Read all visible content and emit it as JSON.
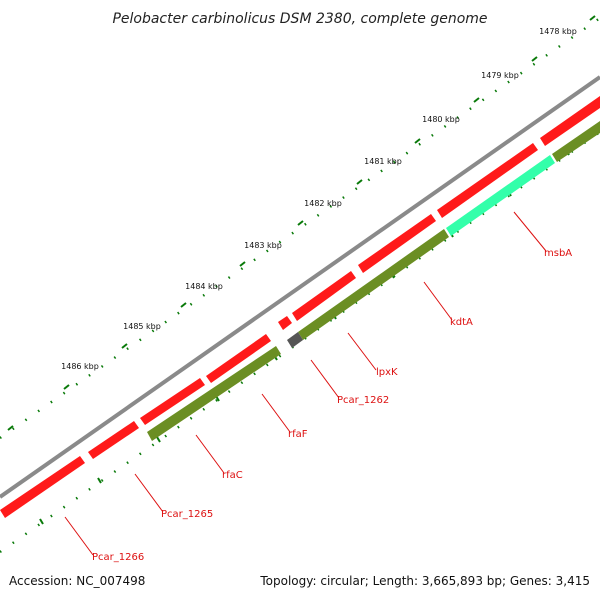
{
  "title": "Pelobacter carbinolicus DSM 2380, complete genome",
  "footer": {
    "accession": "Accession: NC_007498",
    "summary": "Topology: circular; Length: 3,665,893 bp; Genes: 3,415"
  },
  "colors": {
    "backbone": "#8a8a8a",
    "cds": "#ff1a1a",
    "feature_olive": "#6b8e23",
    "feature_aqua": "#33ffaa",
    "feature_gray": "#555555",
    "tick": "#0a7a0a",
    "gene_label": "#dd1111"
  },
  "ticks": [
    {
      "label": "1478 kbp"
    },
    {
      "label": "1479 kbp"
    },
    {
      "label": "1480 kbp"
    },
    {
      "label": "1481 kbp"
    },
    {
      "label": "1482 kbp"
    },
    {
      "label": "1483 kbp"
    },
    {
      "label": "1484 kbp"
    },
    {
      "label": "1485 kbp"
    },
    {
      "label": "1486 kbp"
    }
  ],
  "genes": [
    {
      "label": "msbA"
    },
    {
      "label": "kdtA"
    },
    {
      "label": "lpxK"
    },
    {
      "label": "Pcar_1262"
    },
    {
      "label": "rfaF"
    },
    {
      "label": "rfaC"
    },
    {
      "label": "Pcar_1265"
    },
    {
      "label": "Pcar_1266"
    }
  ]
}
